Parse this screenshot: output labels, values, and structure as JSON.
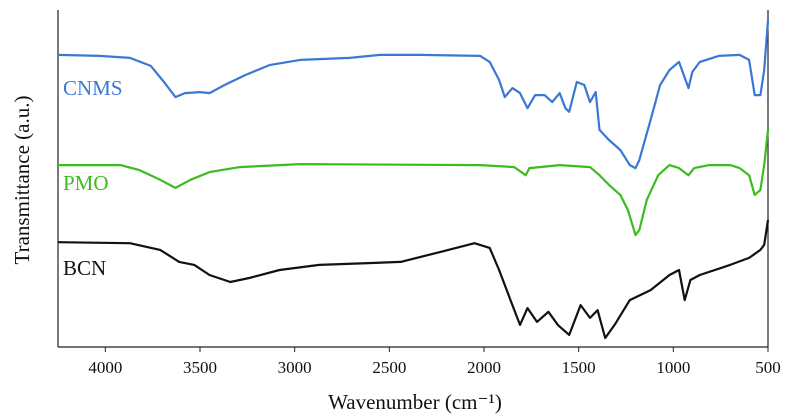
{
  "chart_data": {
    "type": "line",
    "xlabel": "Wavenumber (cm⁻¹)",
    "ylabel": "Transmittance (a.u.)",
    "xlim": [
      4250,
      500
    ],
    "xticks": [
      4000,
      3500,
      3000,
      2500,
      2000,
      1500,
      1000,
      500
    ],
    "ylim": [
      0,
      100
    ],
    "series": [
      {
        "name": "CNMS",
        "color": "#3a78d4",
        "x": [
          4250,
          4030,
          3870,
          3760,
          3690,
          3630,
          3580,
          3500,
          3450,
          3370,
          3260,
          3130,
          2970,
          2710,
          2550,
          2340,
          2020,
          1970,
          1920,
          1890,
          1850,
          1810,
          1770,
          1730,
          1680,
          1640,
          1600,
          1570,
          1550,
          1510,
          1470,
          1440,
          1410,
          1390,
          1340,
          1280,
          1230,
          1200,
          1180,
          1120,
          1070,
          1020,
          970,
          920,
          900,
          860,
          760,
          650,
          600,
          570,
          540,
          520,
          500
        ],
        "values": [
          86.6,
          86.3,
          85.7,
          83.3,
          78.5,
          74.0,
          75.2,
          75.5,
          75.2,
          77.6,
          80.6,
          83.6,
          85.1,
          85.7,
          86.6,
          86.6,
          86.3,
          84.5,
          79.1,
          74.0,
          76.7,
          75.2,
          70.7,
          74.6,
          74.6,
          72.5,
          75.2,
          70.7,
          69.6,
          78.5,
          77.6,
          72.5,
          75.5,
          64.2,
          61.2,
          58.2,
          53.7,
          52.8,
          55.2,
          67.2,
          77.6,
          82.1,
          84.5,
          76.7,
          81.5,
          84.5,
          86.3,
          86.6,
          85.1,
          74.6,
          74.6,
          82.1,
          97.0
        ]
      },
      {
        "name": "PMO",
        "color": "#3dbb1f",
        "x": [
          4250,
          3920,
          3820,
          3710,
          3630,
          3550,
          3450,
          3290,
          2970,
          2020,
          1840,
          1780,
          1760,
          1600,
          1440,
          1390,
          1340,
          1280,
          1240,
          1200,
          1180,
          1140,
          1080,
          1020,
          970,
          920,
          890,
          810,
          700,
          650,
          600,
          570,
          540,
          520,
          500
        ],
        "values": [
          53.7,
          53.7,
          52.2,
          49.3,
          46.9,
          49.3,
          51.6,
          53.1,
          54.0,
          53.7,
          53.1,
          50.7,
          52.8,
          53.7,
          53.1,
          50.7,
          47.8,
          44.8,
          40.3,
          32.8,
          34.3,
          43.3,
          50.7,
          53.7,
          52.8,
          50.7,
          52.8,
          53.7,
          53.7,
          52.8,
          50.7,
          44.8,
          46.3,
          53.7,
          64.2
        ]
      },
      {
        "name": "BCN",
        "color": "#111111",
        "x": [
          4250,
          3870,
          3710,
          3610,
          3530,
          3450,
          3340,
          3240,
          3080,
          2870,
          2440,
          2230,
          2050,
          1970,
          1920,
          1860,
          1810,
          1770,
          1720,
          1660,
          1610,
          1550,
          1490,
          1440,
          1400,
          1360,
          1310,
          1230,
          1120,
          1020,
          970,
          940,
          910,
          860,
          700,
          600,
          540,
          520,
          500
        ],
        "values": [
          30.7,
          30.4,
          28.4,
          24.8,
          23.9,
          20.9,
          18.8,
          20.0,
          22.4,
          23.9,
          24.8,
          27.8,
          30.4,
          29.0,
          22.4,
          13.4,
          6.0,
          11.0,
          6.9,
          9.9,
          6.0,
          3.0,
          11.9,
          8.1,
          10.4,
          2.1,
          6.0,
          13.4,
          16.4,
          20.9,
          22.4,
          13.4,
          19.4,
          20.9,
          23.9,
          26.0,
          28.4,
          29.9,
          37.3
        ]
      }
    ]
  }
}
